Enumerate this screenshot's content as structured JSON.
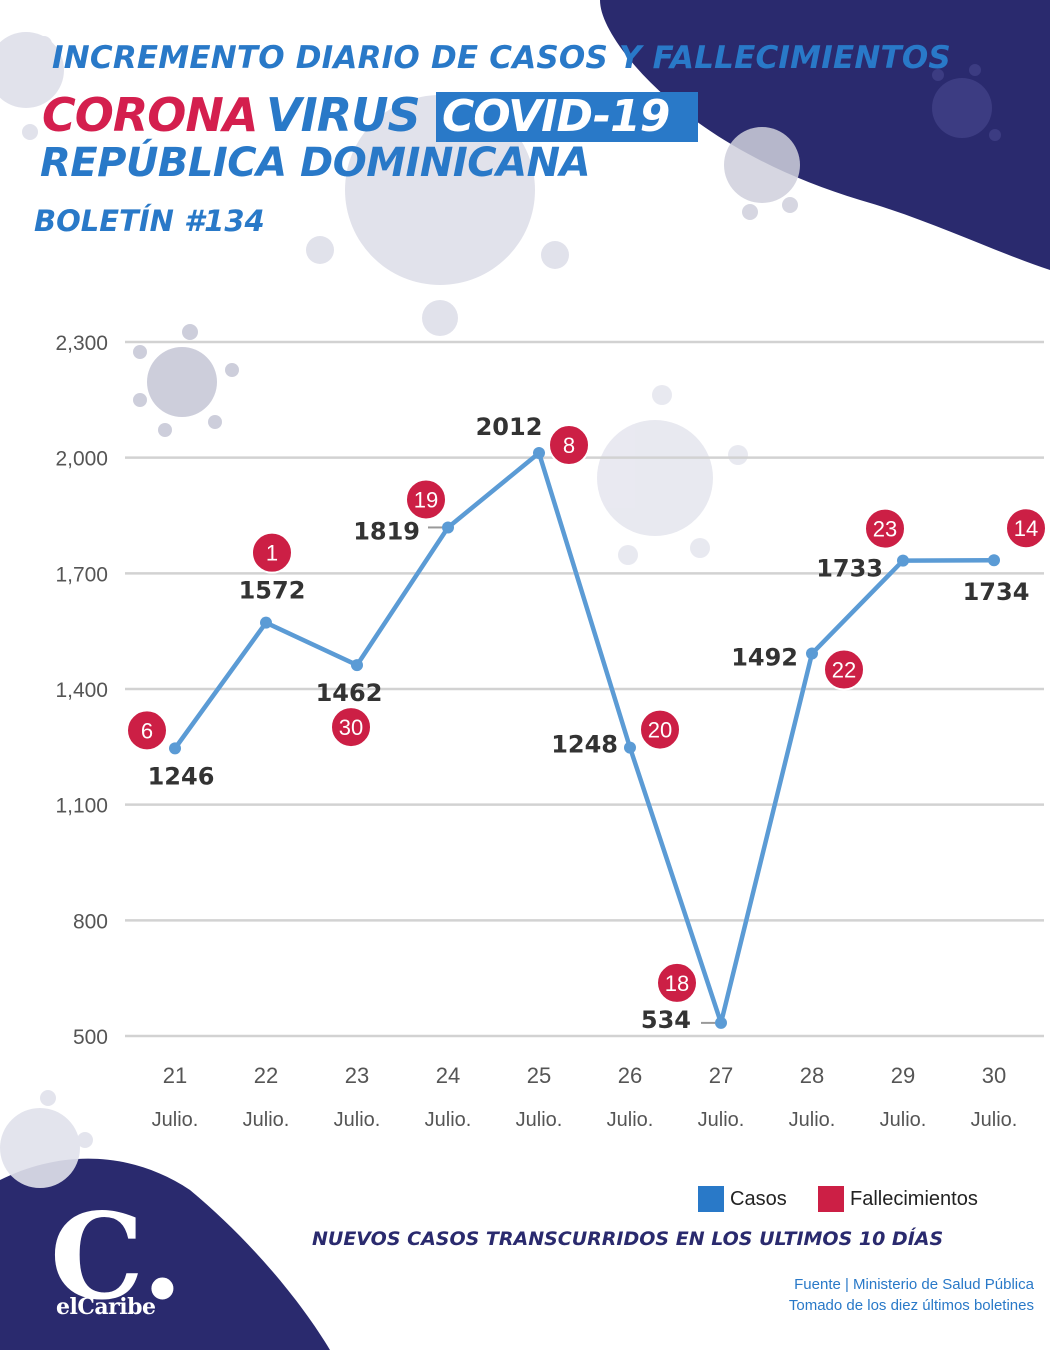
{
  "header": {
    "line1": "INCREMENTO DIARIO DE CASOS Y FALLECIMIENTOS",
    "line2_red": "CORONA",
    "line2_blue": "VIRUS",
    "line2_box": "COVID-19",
    "line3": "REPÚBLICA DOMINICANA",
    "bulletin": "BOLETÍN #134"
  },
  "colors": {
    "casos": "#5b9bd5",
    "fallecimientos": "#cc1f45",
    "navy": "#2a2a6e",
    "blue_text": "#2979c8"
  },
  "chart_data": {
    "type": "line",
    "categories": [
      "21",
      "22",
      "23",
      "24",
      "25",
      "26",
      "27",
      "28",
      "29",
      "30"
    ],
    "category_sublabel": "Julio.",
    "series": [
      {
        "name": "Casos",
        "values": [
          1246,
          1572,
          1462,
          1819,
          2012,
          1248,
          534,
          1492,
          1733,
          1734
        ]
      },
      {
        "name": "Fallecimientos",
        "values": [
          6,
          1,
          30,
          19,
          8,
          20,
          18,
          22,
          23,
          14
        ]
      }
    ],
    "ylim": [
      500,
      2300
    ],
    "yticks": [
      "2,300",
      "2,000",
      "1,700",
      "1,400",
      "1,100",
      "800",
      "500"
    ],
    "ytick_values": [
      2300,
      2000,
      1700,
      1400,
      1100,
      800,
      500
    ],
    "grid": true,
    "legend_position": "bottom-right"
  },
  "legend": {
    "casos": "Casos",
    "fallecimientos": "Fallecimientos"
  },
  "footer": {
    "subtitle": "NUEVOS CASOS TRANSCURRIDOS EN LOS ULTIMOS 10 DÍAS",
    "source_line1": "Fuente | Ministerio de Salud Pública",
    "source_line2": "Tomado de  los diez últimos boletines",
    "logo_letter": "C.",
    "logo_name": "elCaribe"
  }
}
